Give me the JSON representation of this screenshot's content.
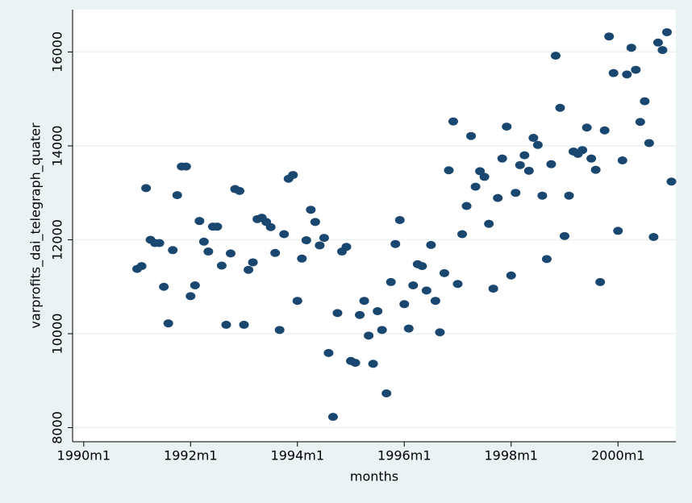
{
  "chart_data": {
    "type": "scatter",
    "x_label": "months",
    "y_label": "varprofits_dai_telegraph_quater",
    "color": "#1a476f",
    "grid": true,
    "xlim": [
      357.5,
      493
    ],
    "xticks": [
      {
        "value": 360,
        "label": "1990m1"
      },
      {
        "value": 384,
        "label": "1992m1"
      },
      {
        "value": 408,
        "label": "1994m1"
      },
      {
        "value": 432,
        "label": "1996m1"
      },
      {
        "value": 456,
        "label": "1998m1"
      },
      {
        "value": 480,
        "label": "2000m1"
      }
    ],
    "ylim": [
      7700,
      16900
    ],
    "yticks": [
      8000,
      10000,
      12000,
      14000,
      16000
    ],
    "x": [
      372,
      373,
      374,
      375,
      376,
      377,
      378,
      379,
      380,
      381,
      382,
      383,
      384,
      385,
      386,
      387,
      388,
      389,
      390,
      391,
      392,
      393,
      394,
      395,
      396,
      397,
      398,
      399,
      400,
      401,
      402,
      403,
      404,
      405,
      406,
      407,
      408,
      409,
      410,
      411,
      412,
      413,
      414,
      415,
      416,
      417,
      418,
      419,
      420,
      421,
      422,
      423,
      424,
      425,
      426,
      427,
      428,
      429,
      430,
      431,
      432,
      433,
      434,
      435,
      436,
      437,
      438,
      439,
      440,
      441,
      442,
      443,
      444,
      445,
      446,
      447,
      448,
      449,
      450,
      451,
      452,
      453,
      454,
      455,
      456,
      457,
      458,
      459,
      460,
      461,
      462,
      463,
      464,
      465,
      466,
      467,
      468,
      469,
      470,
      471,
      472,
      473,
      474,
      475,
      476,
      477,
      478,
      479,
      480,
      481,
      482,
      483,
      484,
      485,
      486,
      487,
      488,
      489,
      490,
      491,
      492
    ],
    "values": [
      11380,
      11440,
      13100,
      12000,
      11930,
      11930,
      11000,
      10220,
      11780,
      12950,
      13560,
      13560,
      10800,
      11030,
      12400,
      11960,
      11750,
      12280,
      12280,
      11450,
      10190,
      11710,
      13080,
      13040,
      10190,
      11360,
      11520,
      12440,
      12470,
      12380,
      12270,
      11720,
      10080,
      12120,
      13300,
      13380,
      10700,
      11600,
      11990,
      12640,
      12380,
      11880,
      12040,
      9590,
      8230,
      10440,
      11750,
      11850,
      9420,
      9380,
      10400,
      10700,
      9960,
      9360,
      10480,
      10080,
      8730,
      11100,
      11910,
      12420,
      10630,
      10110,
      11030,
      11480,
      11440,
      10920,
      11890,
      10700,
      10030,
      11290,
      13480,
      14520,
      11060,
      12120,
      12720,
      14210,
      13130,
      13460,
      13340,
      12340,
      10960,
      12890,
      13730,
      14410,
      11240,
      13000,
      13590,
      13800,
      13470,
      14170,
      14020,
      12940,
      11590,
      13610,
      15920,
      14810,
      12080,
      12940,
      13880,
      13830,
      13910,
      14390,
      13730,
      13490,
      11100,
      14330,
      16330,
      15550,
      12190,
      13690,
      15520,
      16090,
      15620,
      14510,
      14950,
      14060,
      12060,
      16200,
      16040,
      16420,
      13240
    ]
  }
}
